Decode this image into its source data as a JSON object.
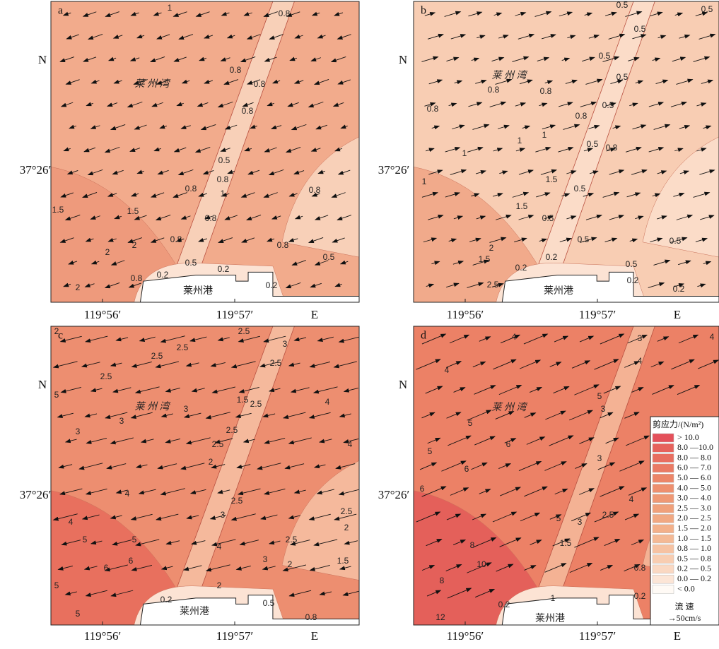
{
  "panels": [
    {
      "label": "a",
      "bay": "莱 州 湾",
      "port": "莱州港",
      "north": "N",
      "lat": "37°26′",
      "lon1": "119°56′",
      "lon2": "119°57′",
      "east": "E",
      "contour_labels": [
        "1",
        "0.8",
        "0.8",
        "0.8",
        "0.8",
        "0.5",
        "0.8",
        "0.8",
        "1",
        "0.8",
        "0.8",
        "1.5",
        "1.5",
        "2",
        "2",
        "0.8",
        "0.8",
        "0.5",
        "0.5",
        "0.2",
        "0.2",
        "0.2",
        "0.8",
        "2"
      ]
    },
    {
      "label": "b",
      "bay": "莱 州 湾",
      "port": "莱州港",
      "north": "N",
      "lat": "37°26′",
      "lon1": "119°56′",
      "lon2": "119°57′",
      "east": "E",
      "contour_labels": [
        "0.5",
        "0.5",
        "0.5",
        "0.5",
        "0.5",
        "0.8",
        "0.8",
        "0.8",
        "0.8",
        "0.5",
        "1",
        "1",
        "1",
        "0.5",
        "0.8",
        "1",
        "1.5",
        "0.5",
        "1.5",
        "0.5",
        "0.5",
        "0.5",
        "2",
        "1.5",
        "0.2",
        "0.5",
        "0.2",
        "2.5",
        "0.2",
        "0.2"
      ]
    },
    {
      "label": "c",
      "bay": "莱 州 湾",
      "port": "莱州港",
      "north": "N",
      "lat": "37°26′",
      "lon1": "119°56′",
      "lon2": "119°57′",
      "east": "E",
      "contour_labels": [
        "2.5",
        "2",
        "2.5",
        "2.5",
        "3",
        "2.5",
        "2.5",
        "5",
        "3",
        "1.5",
        "2.5",
        "4",
        "3",
        "3",
        "2.5",
        "2.5",
        "4",
        "2",
        "4",
        "4",
        "2.5",
        "3",
        "2.5",
        "2",
        "5",
        "5",
        "4",
        "2.5",
        "6",
        "6",
        "1.5",
        "3",
        "2",
        "5",
        "2",
        "0.2",
        "5",
        "0.5",
        "0.8"
      ]
    },
    {
      "label": "d",
      "bay": "莱 州 湾",
      "port": "莱州港",
      "north": "N",
      "lat": "37°26′",
      "lon1": "119°56′",
      "lon2": "119°57′",
      "east": "E",
      "contour_labels": [
        "4",
        "4",
        "3",
        "4",
        "4",
        "5",
        "5",
        "3",
        "5",
        "6",
        "6",
        "3",
        "6",
        "4",
        "5",
        "2.5",
        "3",
        "8",
        "10",
        "1.5",
        "8",
        "0.8",
        "0.2",
        "12",
        "0.2",
        "1"
      ]
    }
  ],
  "legend": {
    "title": "剪应力/(N/m²)",
    "items": [
      {
        "label": "> 10.0",
        "color": "#e4505a"
      },
      {
        "label": "8.0 —10.0",
        "color": "#e6625c"
      },
      {
        "label": "8.0 — 8.0",
        "color": "#e86e60"
      },
      {
        "label": "6.0 — 7.0",
        "color": "#ea7a64"
      },
      {
        "label": "5.0 — 6.0",
        "color": "#ec8568"
      },
      {
        "label": "4.0 — 5.0",
        "color": "#ee8f6e"
      },
      {
        "label": "3.0 — 4.0",
        "color": "#ef9874"
      },
      {
        "label": "2.5 — 3.0",
        "color": "#f0a07a"
      },
      {
        "label": "2.0 — 2.5",
        "color": "#f1a882"
      },
      {
        "label": "1.5 — 2.0",
        "color": "#f3b08a"
      },
      {
        "label": "1.0 — 1.5",
        "color": "#f4b995"
      },
      {
        "label": "0.8 — 1.0",
        "color": "#f6c2a2"
      },
      {
        "label": "0.5 — 0.8",
        "color": "#f8cdb1"
      },
      {
        "label": "0.2 — 0.5",
        "color": "#fad8c2"
      },
      {
        "label": "0.0 — 0.2",
        "color": "#fce5d6"
      },
      {
        "label": "< 0.0",
        "color": "#fffaf5"
      }
    ],
    "flow_title": "流 速",
    "flow_scale": "→50cm/s"
  }
}
